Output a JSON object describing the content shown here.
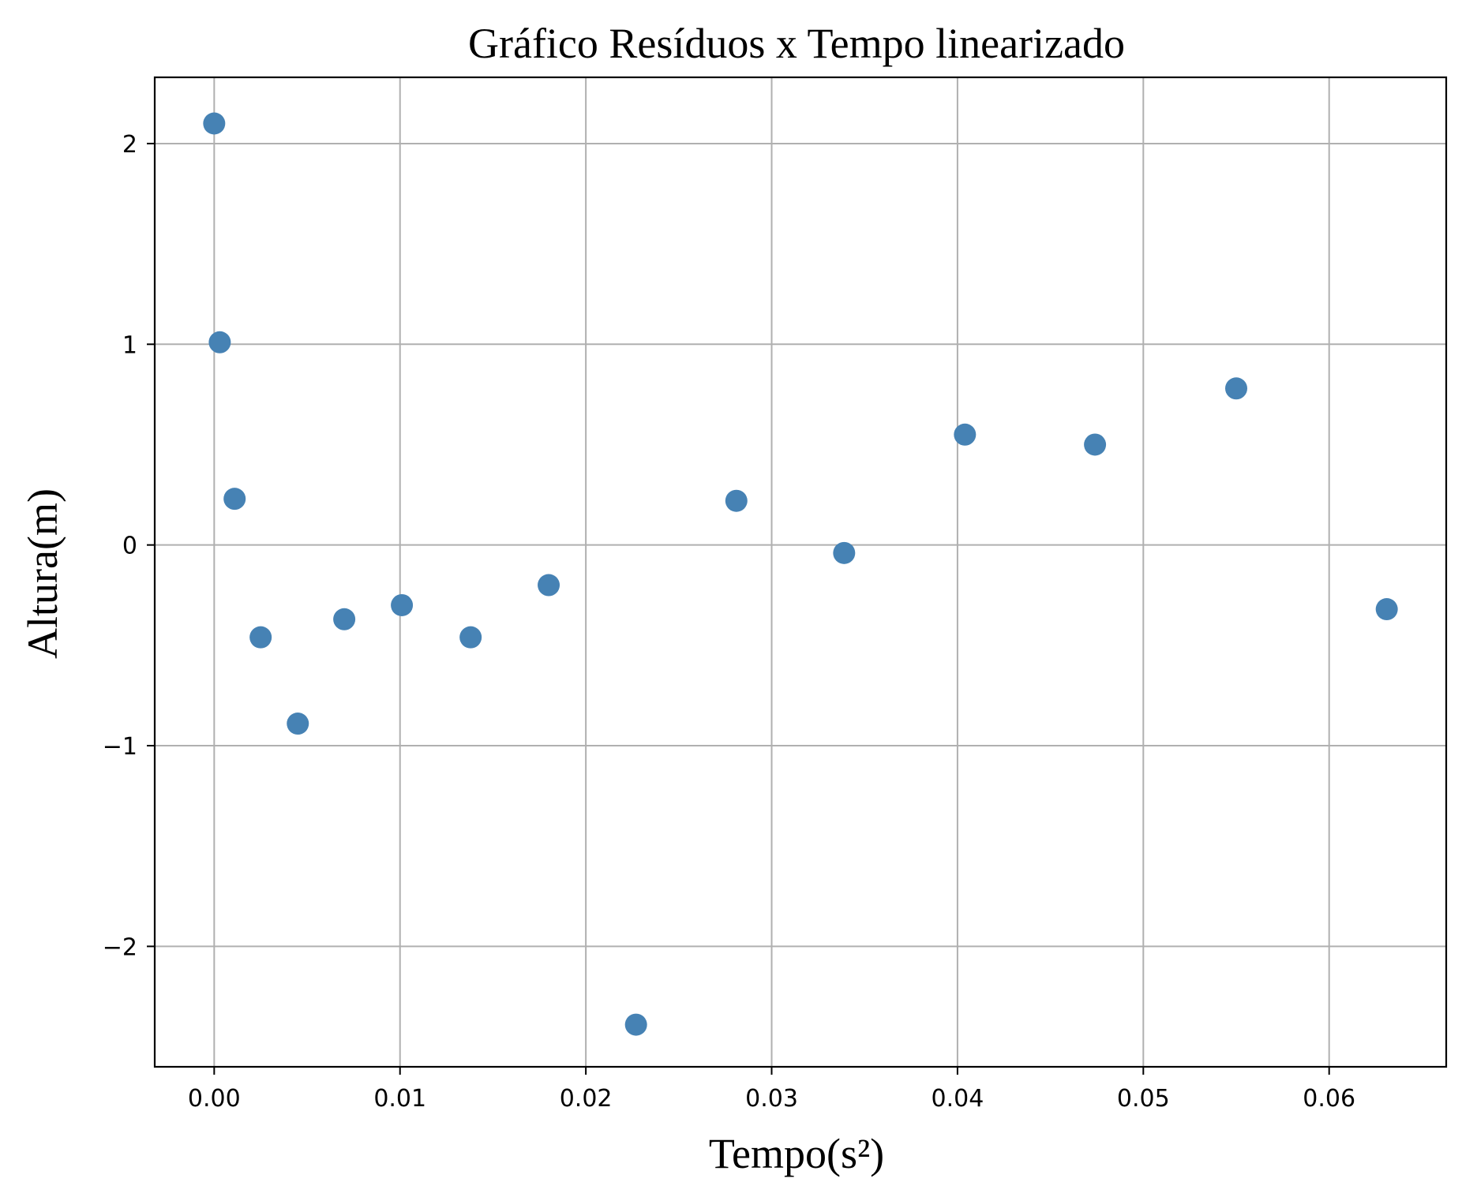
{
  "chart_data": {
    "type": "scatter",
    "title": "Gráfico Resíduos x Tempo linearizado",
    "xlabel": "Tempo(s²)",
    "ylabel": "Altura(m)",
    "xlim": [
      -0.0032,
      0.0663
    ],
    "ylim": [
      -2.6,
      2.33
    ],
    "grid": true,
    "marker_color": "#4682b4",
    "x_ticks": [
      {
        "value": 0.0,
        "label": "0.00"
      },
      {
        "value": 0.01,
        "label": "0.01"
      },
      {
        "value": 0.02,
        "label": "0.02"
      },
      {
        "value": 0.03,
        "label": "0.03"
      },
      {
        "value": 0.04,
        "label": "0.04"
      },
      {
        "value": 0.05,
        "label": "0.05"
      },
      {
        "value": 0.06,
        "label": "0.06"
      }
    ],
    "y_ticks": [
      {
        "value": 2,
        "label": "2"
      },
      {
        "value": 1,
        "label": "1"
      },
      {
        "value": 0,
        "label": "0"
      },
      {
        "value": -1,
        "label": "−1"
      },
      {
        "value": -2,
        "label": "−2"
      }
    ],
    "points": [
      {
        "x": 0.0,
        "y": 2.1
      },
      {
        "x": 0.0003,
        "y": 1.01
      },
      {
        "x": 0.0011,
        "y": 0.23
      },
      {
        "x": 0.0025,
        "y": -0.46
      },
      {
        "x": 0.0045,
        "y": -0.89
      },
      {
        "x": 0.007,
        "y": -0.37
      },
      {
        "x": 0.0101,
        "y": -0.3
      },
      {
        "x": 0.0138,
        "y": -0.46
      },
      {
        "x": 0.018,
        "y": -0.2
      },
      {
        "x": 0.0227,
        "y": -2.39
      },
      {
        "x": 0.0281,
        "y": 0.22
      },
      {
        "x": 0.0339,
        "y": -0.04
      },
      {
        "x": 0.0404,
        "y": 0.55
      },
      {
        "x": 0.0474,
        "y": 0.5
      },
      {
        "x": 0.055,
        "y": 0.78
      },
      {
        "x": 0.0631,
        "y": -0.32
      }
    ]
  }
}
